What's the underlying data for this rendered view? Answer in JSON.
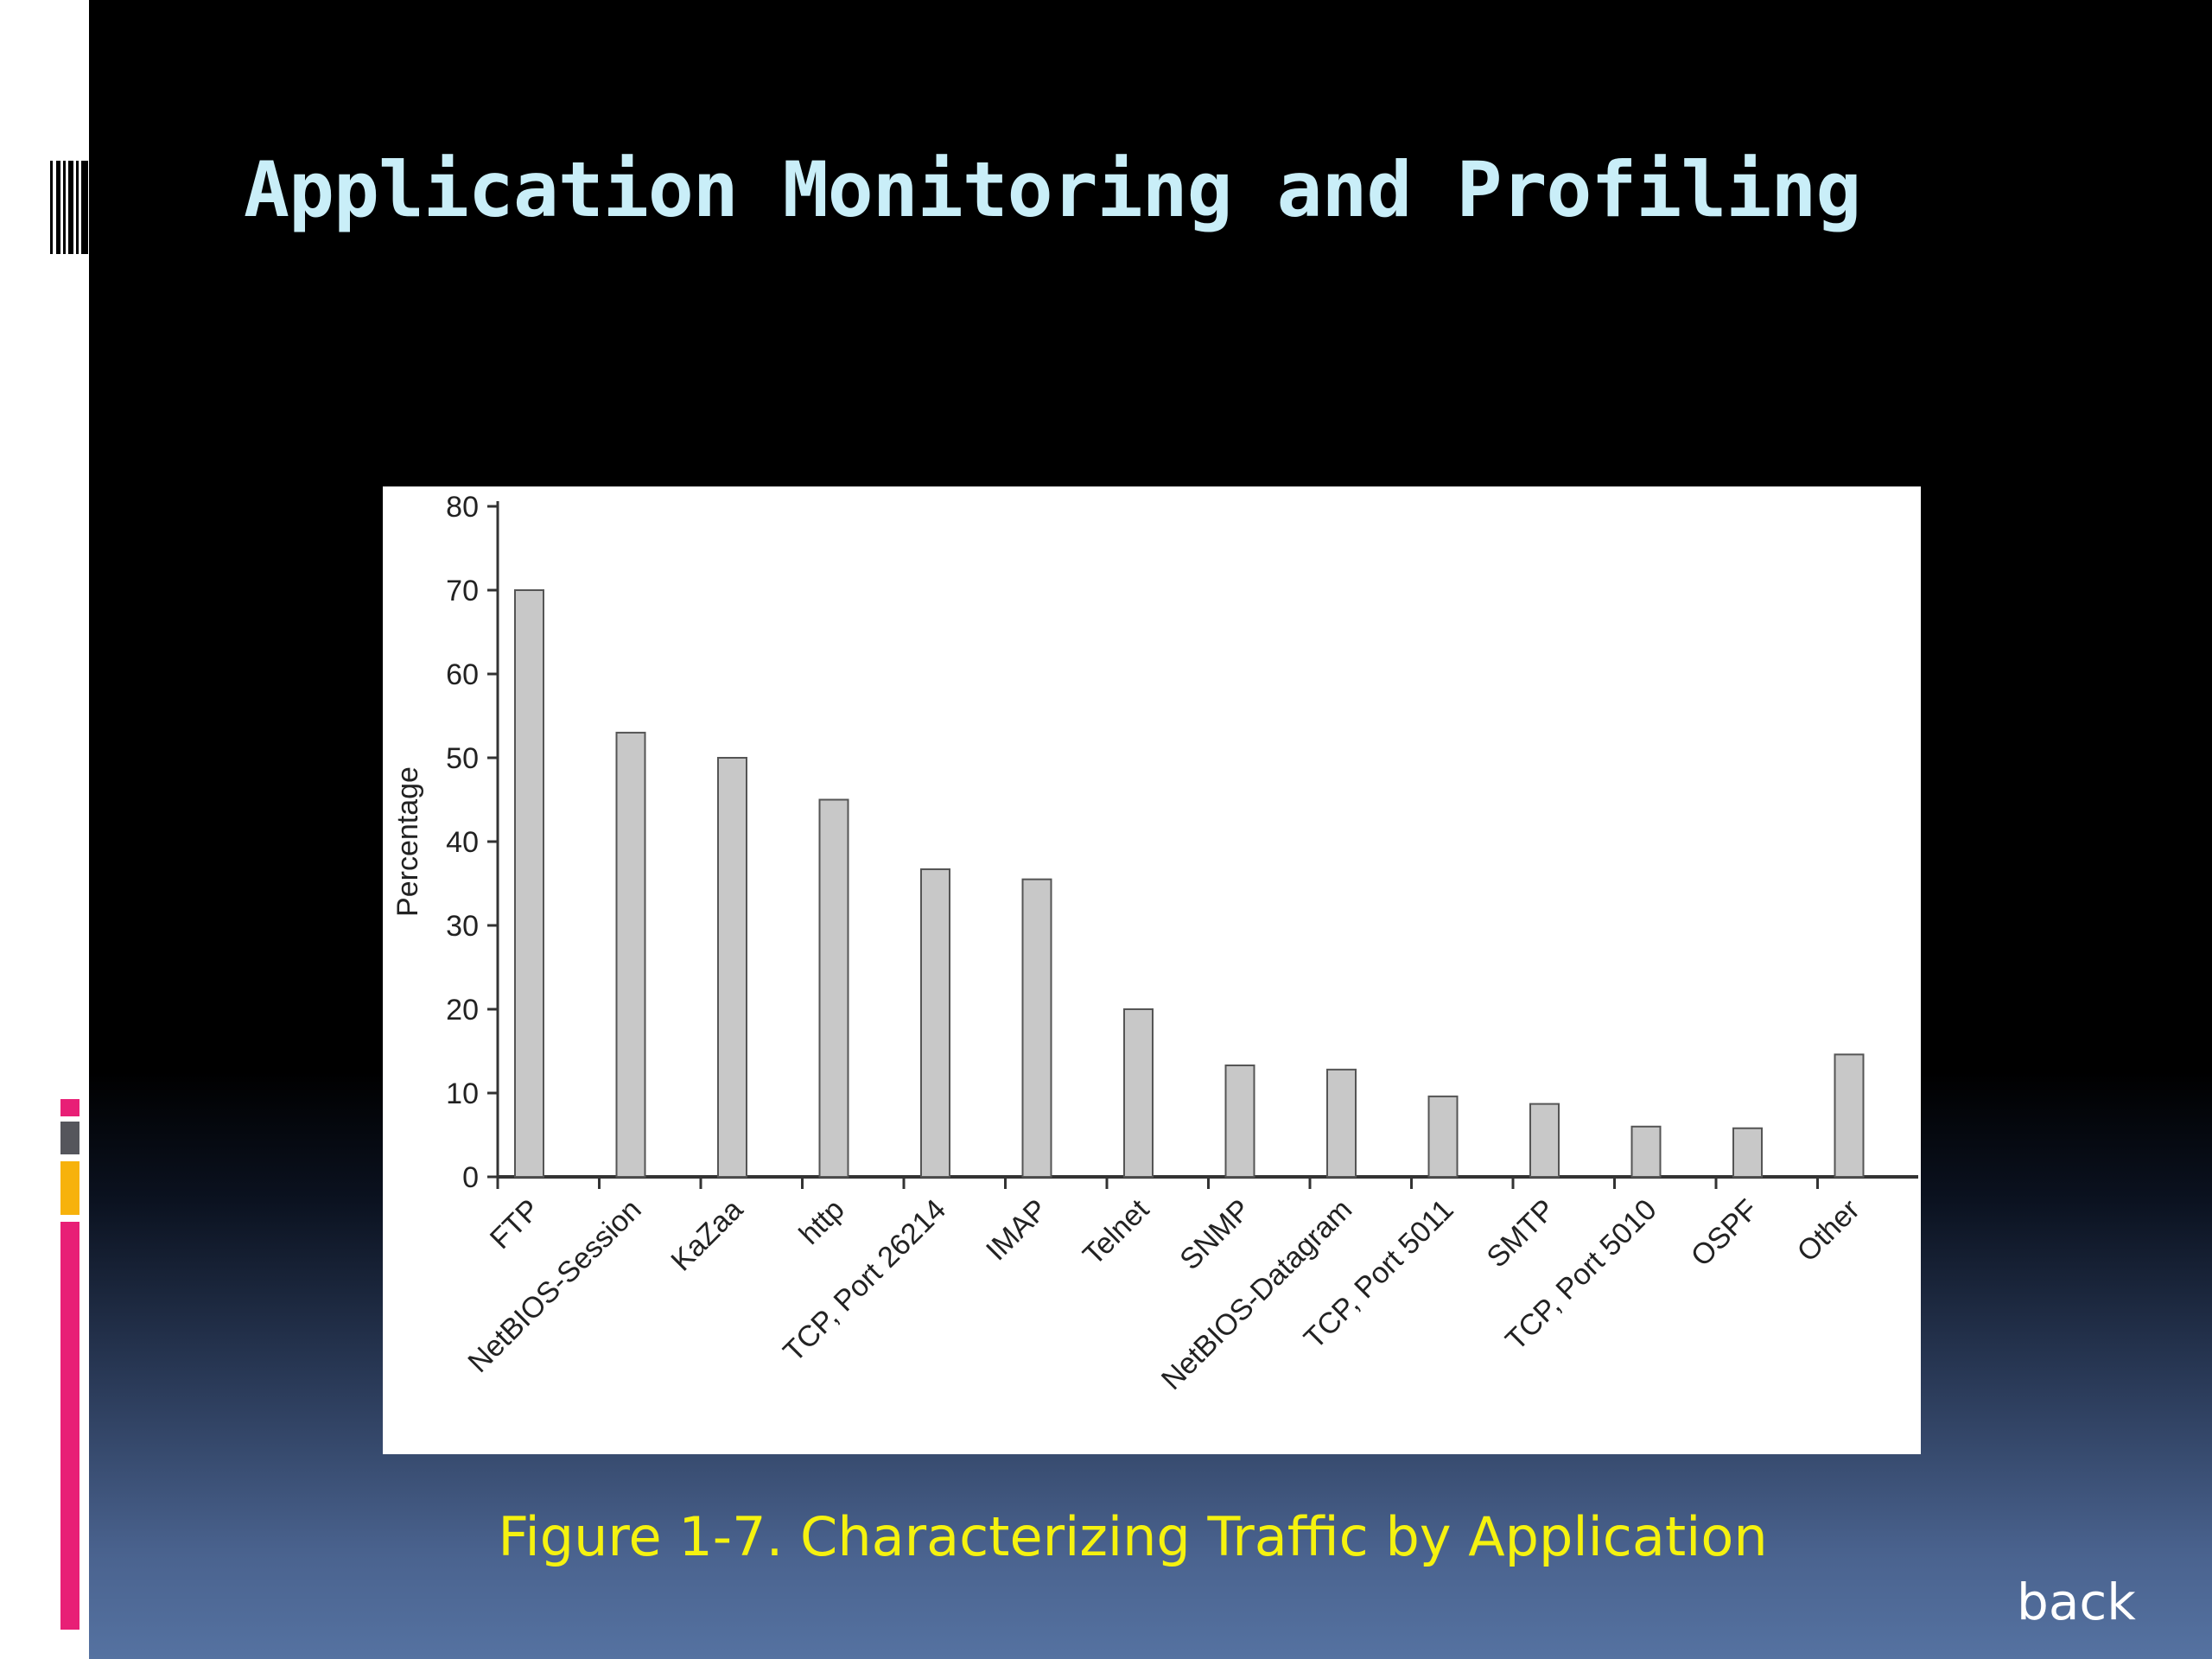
{
  "slide": {
    "title": "Application Monitoring and Profiling",
    "caption": "Figure 1-7. Characterizing Traffic by Application",
    "back_label": "back",
    "colors": {
      "title": "#c9eef8",
      "caption": "#f5f20f",
      "accent_pink": "#e81f76",
      "accent_gray": "#55565c",
      "accent_amber": "#f7b20c",
      "bar_fill": "#c8c8c8",
      "bar_stroke": "#555555"
    }
  },
  "chart_data": {
    "type": "bar",
    "ylabel": "Percentage",
    "xlabel": "",
    "ylim": [
      0,
      80
    ],
    "yticks": [
      0,
      10,
      20,
      30,
      40,
      50,
      60,
      70,
      80
    ],
    "categories": [
      "FTP",
      "NetBIOS-Session",
      "KaZaa",
      "http",
      "TCP, Port 26214",
      "IMAP",
      "Telnet",
      "SNMP",
      "NetBIOS-Datagram",
      "TCP, Port 5011",
      "SMTP",
      "TCP, Port 5010",
      "OSPF",
      "Other"
    ],
    "values": [
      70,
      53,
      50,
      45,
      36.7,
      35.5,
      20,
      13.3,
      12.8,
      9.6,
      8.7,
      6,
      5.8,
      14.6
    ],
    "grid": false,
    "legend": "none"
  }
}
